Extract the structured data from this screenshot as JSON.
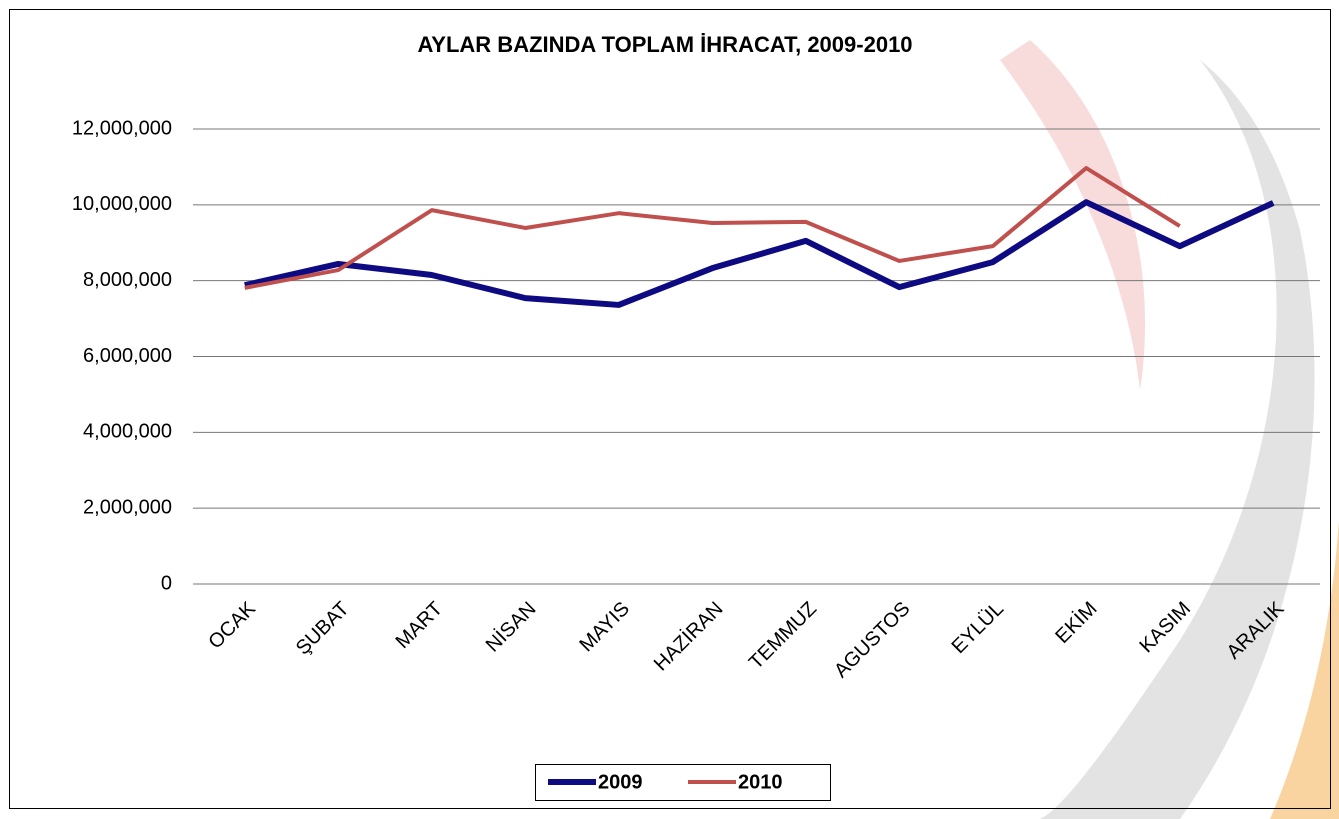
{
  "chart_data": {
    "type": "line",
    "title": "AYLAR BAZINDA TOPLAM İHRACAT, 2009-2010",
    "categories": [
      "OCAK",
      "ŞUBAT",
      "MART",
      "NİSAN",
      "MAYIS",
      "HAZİRAN",
      "TEMMUZ",
      "AGUSTOS",
      "EYLÜL",
      "EKİM",
      "KASIM",
      "ARALIK"
    ],
    "series": [
      {
        "name": "2009",
        "color": "#0d0a82",
        "values": [
          7880000,
          8440000,
          8150000,
          7540000,
          7360000,
          8330000,
          9050000,
          7830000,
          8490000,
          10070000,
          8910000,
          10050000
        ]
      },
      {
        "name": "2010",
        "color": "#c0504d",
        "values": [
          7810000,
          8280000,
          9860000,
          9390000,
          9780000,
          9520000,
          9550000,
          8520000,
          8910000,
          10970000,
          9440000,
          null
        ]
      }
    ],
    "ylim": [
      0,
      12000000
    ],
    "yticks": [
      0,
      {
        "value": 2000000,
        "label": "2,000,000"
      },
      {
        "value": 4000000,
        "label": "4,000,000"
      },
      {
        "value": 6000000,
        "label": "6,000,000"
      },
      {
        "value": 8000000,
        "label": "8,000,000"
      },
      {
        "value": 10000000,
        "label": "10,000,000"
      },
      {
        "value": 12000000,
        "label": "12,000,000"
      }
    ],
    "grid": true,
    "legend": "bottom"
  }
}
